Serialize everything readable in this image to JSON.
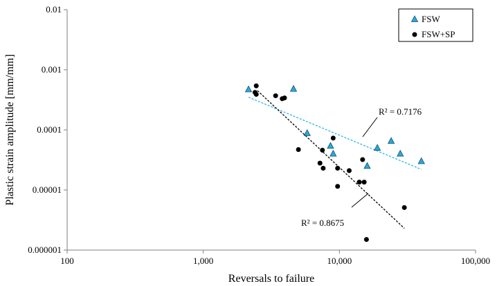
{
  "chart_data": {
    "type": "scatter",
    "x_scale": "log",
    "y_scale": "log",
    "xlabel": "Reversals to failure",
    "ylabel": "Plastic strain amplitude [mm/mm]",
    "xlim": [
      100,
      100000
    ],
    "ylim": [
      1e-06,
      0.01
    ],
    "x_ticks": [
      100,
      1000,
      10000,
      100000
    ],
    "x_tick_labels": [
      "100",
      "1,000",
      "10,000",
      "100,000"
    ],
    "y_ticks": [
      1e-06,
      1e-05,
      0.0001,
      0.001,
      0.01
    ],
    "y_tick_labels": [
      "0.000001",
      "0.00001",
      "0.0001",
      "0.001",
      "0.01"
    ],
    "grid": false,
    "legend_position": "top-right",
    "series": [
      {
        "name": "FSW",
        "marker": "triangle",
        "color": "#29a9d8",
        "trendline_color": "#29b6e8",
        "r2_label": "R² = 0.7176",
        "trendline": [
          [
            2150,
            0.00035
          ],
          [
            40000,
            2.2e-05
          ]
        ],
        "points": [
          [
            2150,
            0.00047
          ],
          [
            4600,
            0.00048
          ],
          [
            5800,
            8.8e-05
          ],
          [
            8600,
            5.4e-05
          ],
          [
            9000,
            4e-05
          ],
          [
            16000,
            2.5e-05
          ],
          [
            19000,
            5e-05
          ],
          [
            24000,
            6.5e-05
          ],
          [
            28000,
            4e-05
          ],
          [
            40000,
            3e-05
          ]
        ]
      },
      {
        "name": "FSW+SP",
        "marker": "circle",
        "color": "#000000",
        "trendline_color": "#000000",
        "r2_label": "R² = 0.8675",
        "trendline": [
          [
            2500,
            0.00045
          ],
          [
            30000,
            2.3e-06
          ]
        ],
        "points": [
          [
            2450,
            0.00054
          ],
          [
            2400,
            0.00042
          ],
          [
            2450,
            0.00039
          ],
          [
            3400,
            0.00037
          ],
          [
            3800,
            0.00033
          ],
          [
            3950,
            0.00034
          ],
          [
            5000,
            4.7e-05
          ],
          [
            7200,
            2.8e-05
          ],
          [
            7500,
            4.6e-05
          ],
          [
            7600,
            2.3e-05
          ],
          [
            9000,
            7.3e-05
          ],
          [
            9700,
            2.3e-05
          ],
          [
            9700,
            1.15e-05
          ],
          [
            11800,
            2.1e-05
          ],
          [
            14000,
            1.35e-05
          ],
          [
            14800,
            3.2e-05
          ],
          [
            15200,
            1.35e-05
          ],
          [
            15800,
            1.5e-06
          ],
          [
            30000,
            5.1e-06
          ]
        ]
      }
    ]
  }
}
